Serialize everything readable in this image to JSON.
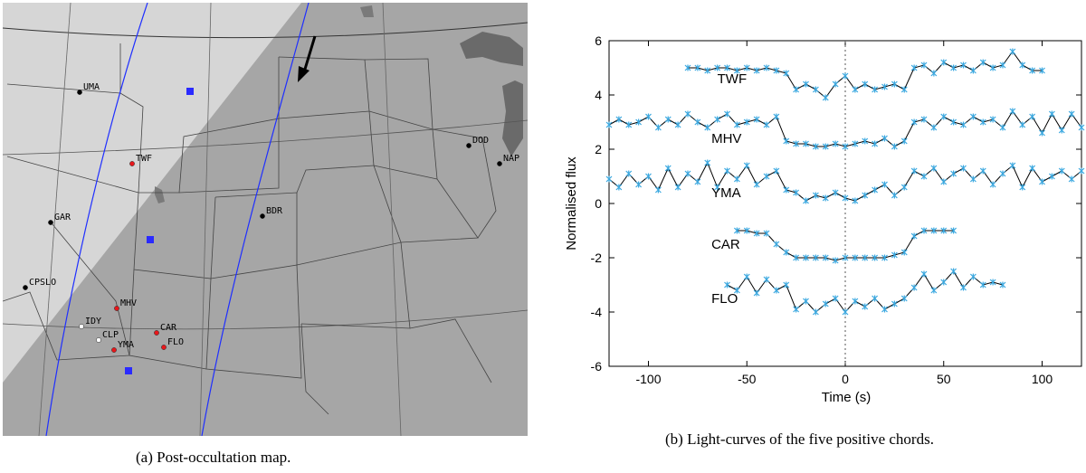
{
  "map": {
    "caption": "(a) Post-occultation map.",
    "colors": {
      "background": "#a6a6a6",
      "shadow": "#8e8e8e",
      "land_light": "#d6d6d6",
      "lake": "#6a6a6a",
      "path": "#1f2fff",
      "positive_station": "#e8171b",
      "negative_station": "#ffffff",
      "other_station": "#000000",
      "marker": "#2a2aff",
      "arrow": "#000000"
    },
    "stations": [
      {
        "code": "UMA",
        "status": "other"
      },
      {
        "code": "TWF",
        "status": "positive"
      },
      {
        "code": "DOD",
        "status": "other"
      },
      {
        "code": "NAP",
        "status": "other"
      },
      {
        "code": "GAR",
        "status": "other"
      },
      {
        "code": "BDR",
        "status": "other"
      },
      {
        "code": "CPSLO",
        "status": "other"
      },
      {
        "code": "MHV",
        "status": "positive"
      },
      {
        "code": "IDY",
        "status": "negative"
      },
      {
        "code": "CAR",
        "status": "positive"
      },
      {
        "code": "CLP",
        "status": "negative"
      },
      {
        "code": "YMA",
        "status": "positive"
      },
      {
        "code": "FLO",
        "status": "positive"
      }
    ]
  },
  "chart_caption": "(b) Light-curves of the five positive chords.",
  "chart_data": {
    "type": "line",
    "xlabel": "Time (s)",
    "ylabel": "Normalised flux",
    "xlim": [
      -120,
      120
    ],
    "ylim": [
      -6,
      6
    ],
    "xticks": [
      -100,
      -50,
      0,
      50,
      100
    ],
    "yticks": [
      -6,
      -4,
      -2,
      0,
      2,
      4,
      6
    ],
    "reference_line_x": 0,
    "line_color": "#000000",
    "marker_color": "#3aa8e0",
    "series": [
      {
        "name": "TWF",
        "x": [
          -80,
          -75,
          -70,
          -65,
          -60,
          -55,
          -50,
          -45,
          -40,
          -35,
          -30,
          -25,
          -20,
          -15,
          -10,
          -5,
          0,
          5,
          10,
          15,
          20,
          25,
          30,
          35,
          40,
          45,
          50,
          55,
          60,
          65,
          70,
          75,
          80,
          85,
          90,
          95,
          100
        ],
        "y": [
          5.0,
          5.0,
          4.9,
          5.0,
          5.0,
          4.9,
          5.0,
          4.9,
          5.0,
          4.9,
          4.8,
          4.2,
          4.4,
          4.2,
          3.9,
          4.4,
          4.7,
          4.2,
          4.4,
          4.2,
          4.3,
          4.4,
          4.2,
          5.0,
          5.1,
          4.8,
          5.2,
          5.0,
          5.1,
          4.9,
          5.2,
          5.0,
          5.1,
          5.6,
          5.1,
          4.9,
          4.9
        ]
      },
      {
        "name": "MHV",
        "x": [
          -120,
          -115,
          -110,
          -105,
          -100,
          -95,
          -90,
          -85,
          -80,
          -75,
          -70,
          -65,
          -60,
          -55,
          -50,
          -45,
          -40,
          -35,
          -30,
          -25,
          -20,
          -15,
          -10,
          -5,
          0,
          5,
          10,
          15,
          20,
          25,
          30,
          35,
          40,
          45,
          50,
          55,
          60,
          65,
          70,
          75,
          80,
          85,
          90,
          95,
          100,
          105,
          110,
          115,
          120
        ],
        "y": [
          2.9,
          3.1,
          2.9,
          3.0,
          3.2,
          2.8,
          3.1,
          2.9,
          3.3,
          3.0,
          2.8,
          3.1,
          3.3,
          2.9,
          3.0,
          3.1,
          2.9,
          3.2,
          2.3,
          2.2,
          2.2,
          2.1,
          2.1,
          2.2,
          2.1,
          2.2,
          2.3,
          2.2,
          2.4,
          2.1,
          2.3,
          3.0,
          3.1,
          2.8,
          3.2,
          3.0,
          2.9,
          3.2,
          3.0,
          3.1,
          2.8,
          3.4,
          2.9,
          3.2,
          2.6,
          3.3,
          2.7,
          3.3,
          2.8
        ]
      },
      {
        "name": "YMA",
        "x": [
          -120,
          -115,
          -110,
          -105,
          -100,
          -95,
          -90,
          -85,
          -80,
          -75,
          -70,
          -65,
          -60,
          -55,
          -50,
          -45,
          -40,
          -35,
          -30,
          -25,
          -20,
          -15,
          -10,
          -5,
          0,
          5,
          10,
          15,
          20,
          25,
          30,
          35,
          40,
          45,
          50,
          55,
          60,
          65,
          70,
          75,
          80,
          85,
          90,
          95,
          100,
          105,
          110,
          115,
          120
        ],
        "y": [
          0.9,
          0.6,
          1.1,
          0.7,
          1.0,
          0.5,
          1.3,
          0.6,
          1.1,
          0.8,
          1.5,
          0.6,
          1.2,
          0.9,
          1.4,
          0.7,
          1.0,
          1.2,
          0.5,
          0.4,
          0.1,
          0.3,
          0.2,
          0.4,
          0.2,
          0.1,
          0.3,
          0.5,
          0.7,
          0.3,
          0.6,
          1.2,
          1.0,
          1.3,
          0.8,
          1.1,
          1.3,
          0.9,
          1.2,
          0.7,
          1.1,
          1.4,
          0.6,
          1.3,
          0.8,
          1.0,
          1.2,
          0.9,
          1.2
        ]
      },
      {
        "name": "CAR",
        "x": [
          -55,
          -50,
          -45,
          -40,
          -35,
          -30,
          -25,
          -20,
          -15,
          -10,
          -5,
          0,
          5,
          10,
          15,
          20,
          25,
          30,
          35,
          40,
          45,
          50,
          55
        ],
        "y": [
          -1.0,
          -1.0,
          -1.1,
          -1.1,
          -1.5,
          -1.8,
          -2.0,
          -2.0,
          -2.0,
          -2.0,
          -2.1,
          -2.0,
          -2.0,
          -2.0,
          -2.0,
          -2.0,
          -1.9,
          -1.8,
          -1.2,
          -1.0,
          -1.0,
          -1.0,
          -1.0
        ]
      },
      {
        "name": "FLO",
        "x": [
          -60,
          -55,
          -50,
          -45,
          -40,
          -35,
          -30,
          -25,
          -20,
          -15,
          -10,
          -5,
          0,
          5,
          10,
          15,
          20,
          25,
          30,
          35,
          40,
          45,
          50,
          55,
          60,
          65,
          70,
          75,
          80
        ],
        "y": [
          -3.0,
          -3.2,
          -2.7,
          -3.3,
          -2.8,
          -3.2,
          -3.0,
          -3.9,
          -3.6,
          -4.0,
          -3.7,
          -3.5,
          -4.0,
          -3.6,
          -3.8,
          -3.5,
          -3.9,
          -3.7,
          -3.5,
          -3.1,
          -2.6,
          -3.2,
          -2.9,
          -2.5,
          -3.1,
          -2.7,
          -3.0,
          -2.9,
          -3.0
        ]
      }
    ]
  }
}
